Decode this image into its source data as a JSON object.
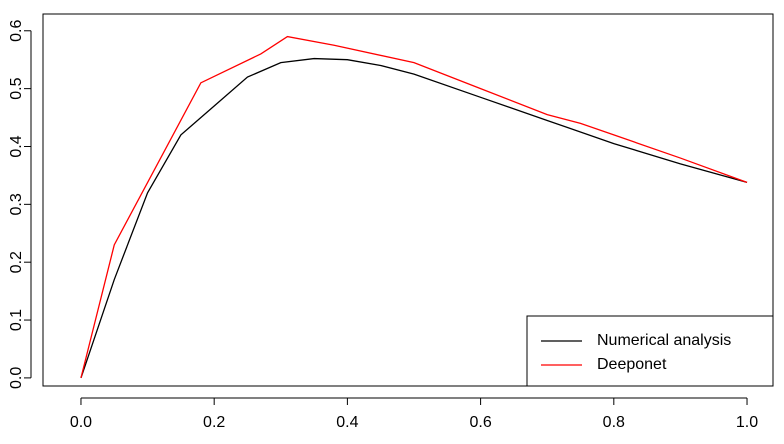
{
  "chart_data": {
    "type": "line",
    "series": [
      {
        "name": "Numerical analysis",
        "color": "#000000",
        "x": [
          0,
          0.05,
          0.1,
          0.15,
          0.2,
          0.25,
          0.3,
          0.35,
          0.4,
          0.45,
          0.5,
          0.6,
          0.7,
          0.8,
          0.9,
          1.0
        ],
        "values": [
          0,
          0.17,
          0.32,
          0.42,
          0.47,
          0.52,
          0.545,
          0.552,
          0.55,
          0.54,
          0.525,
          0.485,
          0.445,
          0.405,
          0.37,
          0.338
        ]
      },
      {
        "name": "Deeponet",
        "color": "#ff0000",
        "x": [
          0,
          0.05,
          0.18,
          0.27,
          0.31,
          0.38,
          0.5,
          0.6,
          0.7,
          0.75,
          0.8,
          0.9,
          1.0
        ],
        "values": [
          0,
          0.23,
          0.51,
          0.56,
          0.59,
          0.575,
          0.545,
          0.5,
          0.455,
          0.44,
          0.42,
          0.38,
          0.338
        ]
      }
    ],
    "xlim": [
      -0.057,
      1.039
    ],
    "ylim": [
      -0.014,
      0.629
    ],
    "xticks": [
      {
        "value": 0,
        "label": "0.0"
      },
      0.2,
      0.4,
      0.6,
      0.8,
      {
        "value": 1,
        "label": "1.0"
      }
    ],
    "yticks": [
      {
        "value": 0,
        "label": "0.0"
      },
      0.1,
      0.2,
      0.3,
      0.4,
      0.5,
      0.6
    ],
    "legend": "bottom-right"
  }
}
